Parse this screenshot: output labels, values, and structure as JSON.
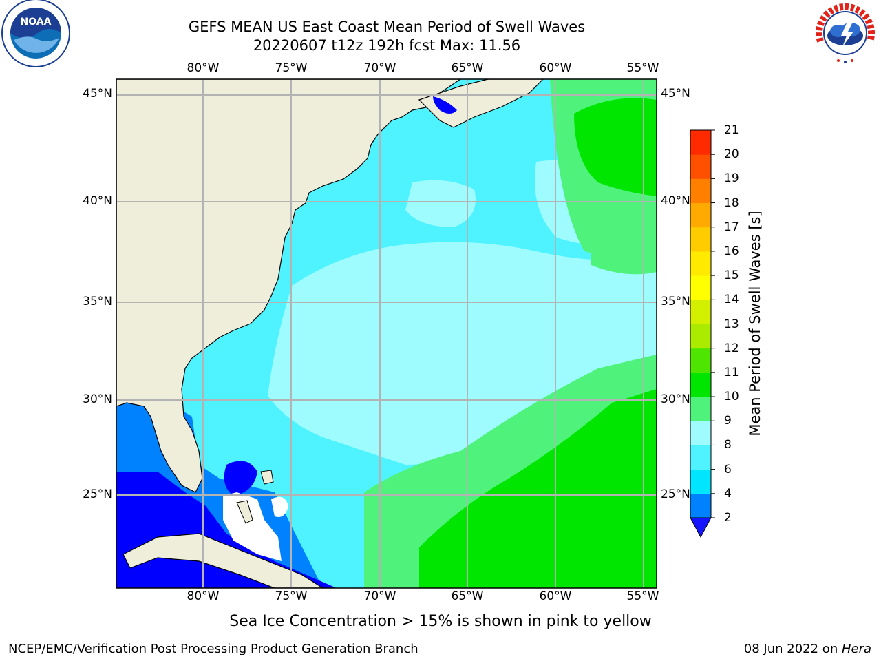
{
  "title": {
    "line1": "GEFS MEAN US East Coast Mean Period of Swell Waves",
    "line2": "20220607 t12z 192h fcst   Max: 11.56"
  },
  "map": {
    "lon_labels": [
      "80°W",
      "75°W",
      "70°W",
      "65°W",
      "60°W",
      "55°W"
    ],
    "lat_labels": [
      "45°N",
      "40°N",
      "35°N",
      "30°N",
      "25°N"
    ],
    "land_color": "#efeedb",
    "grid_color": "#b3b3b3"
  },
  "colorbar": {
    "label": "Mean Period of Swell Waves [s]",
    "ticks": [
      "2",
      "4",
      "6",
      "8",
      "9",
      "10",
      "11",
      "12",
      "13",
      "14",
      "15",
      "16",
      "17",
      "18",
      "19",
      "20",
      "21"
    ],
    "colors": [
      "#0000ff",
      "#0082ff",
      "#00e6ff",
      "#4ff2ff",
      "#9efcff",
      "#4ff27a",
      "#00e600",
      "#4ee600",
      "#aaeb00",
      "#d2f000",
      "#ffff00",
      "#ffea00",
      "#ffcc00",
      "#ffaa00",
      "#ff8000",
      "#ff5000",
      "#ff2a00",
      "#ff0000"
    ],
    "under_color": "#1414ff"
  },
  "ice_note": "Sea Ice Concentration > 15% is shown in pink to yellow",
  "footer": {
    "left": "NCEP/EMC/Verification Post Processing Product Generation Branch",
    "date": "08 Jun 2022 on ",
    "host": "Hera"
  },
  "logos": {
    "noaa_text": "NOAA",
    "nws_text": "NATIONAL WEATHER SERVICE"
  }
}
